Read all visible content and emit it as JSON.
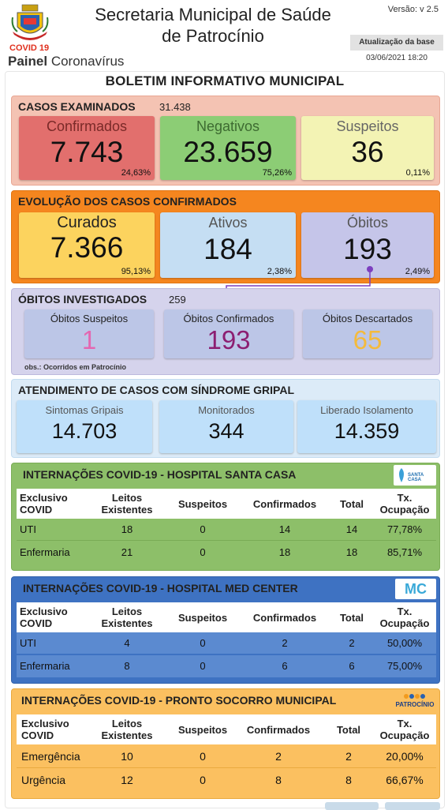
{
  "header": {
    "title_line1": "Secretaria Municipal de Saúde",
    "title_line2": "de Patrocínio",
    "covid_tag": "COVID 19",
    "painel_bold": "Painel",
    "painel_rest": "Coronavírus",
    "version": "Versão: v 2.5",
    "update_label": "Atualização da base",
    "update_date": "03/06/2021 18:20"
  },
  "boletim_title": "BOLETIM INFORMATIVO MUNICIPAL",
  "casos_examinados": {
    "title": "CASOS EXAMINADOS",
    "total": "31.438",
    "cards": [
      {
        "label": "Confirmados",
        "value": "7.743",
        "pct": "24,63%"
      },
      {
        "label": "Negativos",
        "value": "23.659",
        "pct": "75,26%"
      },
      {
        "label": "Suspeitos",
        "value": "36",
        "pct": "0,11%"
      }
    ]
  },
  "evolucao": {
    "title": "EVOLUÇÃO DOS CASOS CONFIRMADOS",
    "cards": [
      {
        "label": "Curados",
        "value": "7.366",
        "pct": "95,13%"
      },
      {
        "label": "Ativos",
        "value": "184",
        "pct": "2,38%"
      },
      {
        "label": "Óbitos",
        "value": "193",
        "pct": "2,49%"
      }
    ]
  },
  "obitos_investigados": {
    "title": "ÓBITOS INVESTIGADOS",
    "total": "259",
    "note": "obs.: Ocorridos em Patrocínio",
    "cards": [
      {
        "label": "Óbitos Suspeitos",
        "value": "1"
      },
      {
        "label": "Óbitos Confirmados",
        "value": "193"
      },
      {
        "label": "Óbitos Descartados",
        "value": "65"
      }
    ]
  },
  "sindrome_gripal": {
    "title": "ATENDIMENTO DE CASOS COM SÍNDROME GRIPAL",
    "cards": [
      {
        "label": "Sintomas Gripais",
        "value": "14.703"
      },
      {
        "label": "Monitorados",
        "value": "344"
      },
      {
        "label": "Liberado Isolamento",
        "value": "14.359"
      }
    ]
  },
  "santa_casa": {
    "title": "INTERNAÇÕES COVID-19 - HOSPITAL SANTA CASA",
    "logo_text": "SANTA CASA",
    "headers": [
      "Exclusivo COVID",
      "Leitos Existentes",
      "Suspeitos",
      "Confirmados",
      "Total",
      "Tx. Ocupação"
    ],
    "rows": [
      [
        "UTI",
        "18",
        "0",
        "14",
        "14",
        "77,78%"
      ],
      [
        "Enfermaria",
        "21",
        "0",
        "18",
        "18",
        "85,71%"
      ]
    ]
  },
  "med_center": {
    "title": "INTERNAÇÕES COVID-19 - HOSPITAL MED CENTER",
    "logo_text": "MC",
    "headers": [
      "Exclusivo COVID",
      "Leitos Existentes",
      "Suspeitos",
      "Confirmados",
      "Total",
      "Tx. Ocupação"
    ],
    "rows": [
      [
        "UTI",
        "4",
        "0",
        "2",
        "2",
        "50,00%"
      ],
      [
        "Enfermaria",
        "8",
        "0",
        "6",
        "6",
        "75,00%"
      ]
    ]
  },
  "pronto_socorro": {
    "title": "INTERNAÇÕES COVID-19 - PRONTO SOCORRO MUNICIPAL",
    "logo_text": "PATROCÍNIO",
    "headers": [
      "Exclusivo COVID",
      "Leitos Existentes",
      "Suspeitos",
      "Confirmados",
      "Total",
      "Tx. Ocupação"
    ],
    "rows": [
      [
        "Emergência",
        "10",
        "0",
        "2",
        "2",
        "20,00%"
      ],
      [
        "Urgência",
        "12",
        "0",
        "8",
        "8",
        "66,67%"
      ]
    ]
  }
}
